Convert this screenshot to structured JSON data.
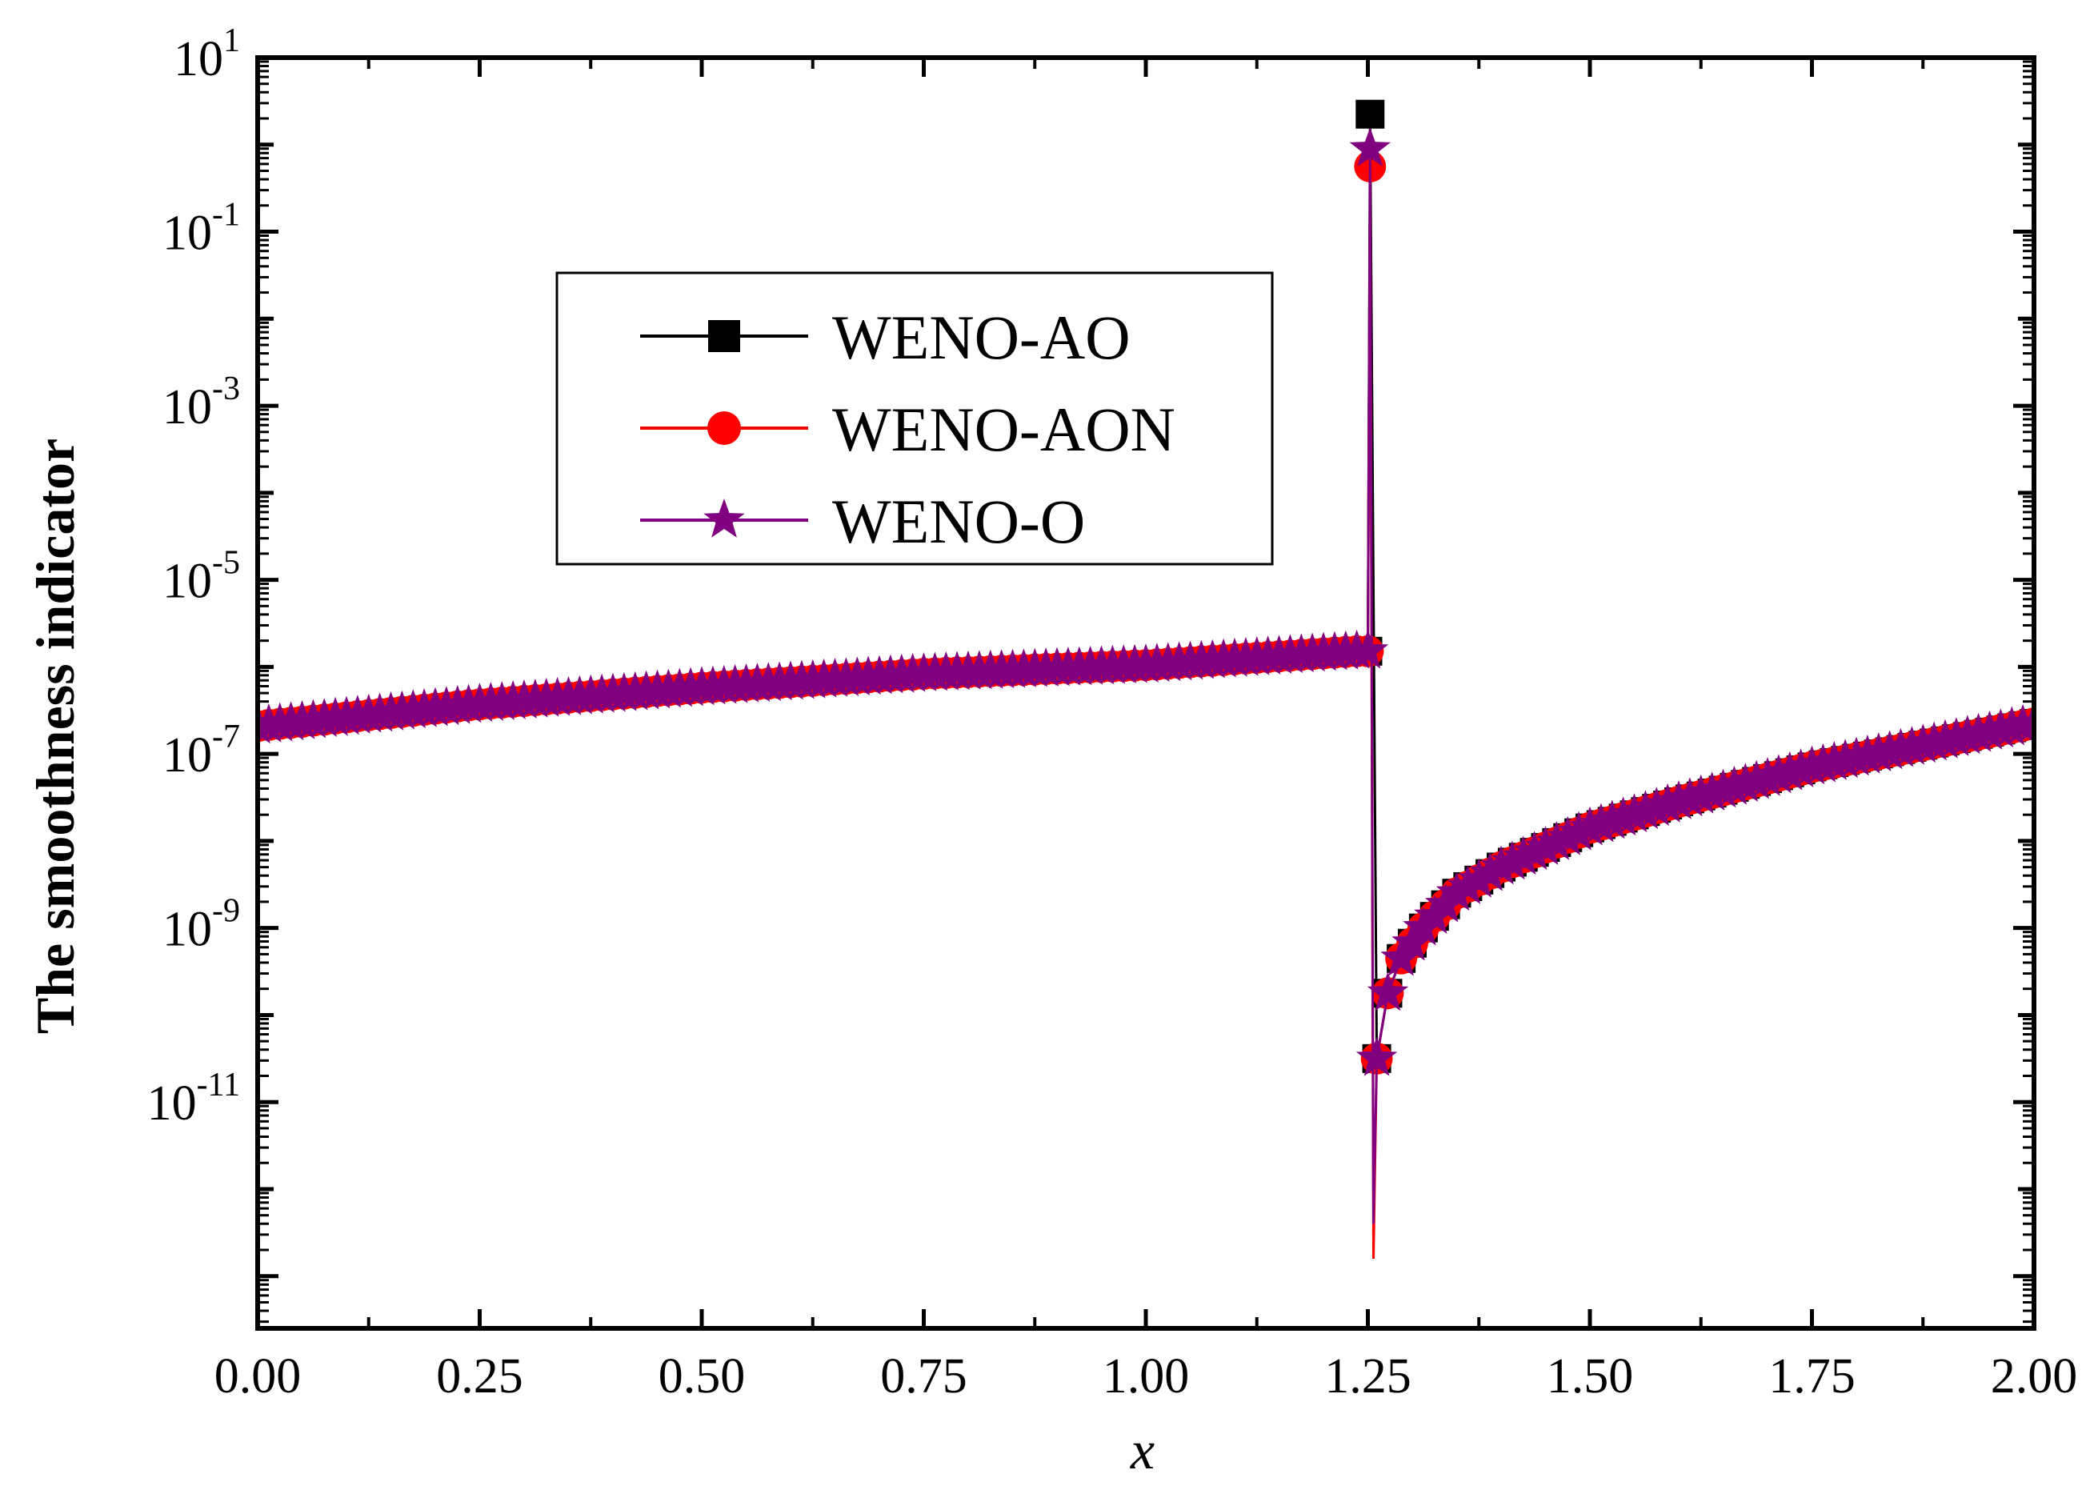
{
  "chart_data": {
    "type": "line",
    "title": "",
    "xlabel": "x",
    "ylabel": "The smoothness indicator",
    "x_scale": "linear",
    "y_scale": "log",
    "xlim": [
      0,
      2
    ],
    "ylim_exponent": [
      -13.6,
      1
    ],
    "x_ticks": [
      "0.00",
      "0.25",
      "0.50",
      "0.75",
      "1.00",
      "1.25",
      "1.50",
      "1.75",
      "2.00"
    ],
    "y_ticks": [
      {
        "base": "10",
        "exp": "1",
        "power": 1
      },
      {
        "base": "10",
        "exp": "-1",
        "power": -1
      },
      {
        "base": "10",
        "exp": "-3",
        "power": -3
      },
      {
        "base": "10",
        "exp": "-5",
        "power": -5
      },
      {
        "base": "10",
        "exp": "-7",
        "power": -7
      },
      {
        "base": "10",
        "exp": "-9",
        "power": -9
      },
      {
        "base": "10",
        "exp": "-11",
        "power": -11
      }
    ],
    "legend_position": "upper-left",
    "series": [
      {
        "name": "WENO-AO",
        "color": "#000000",
        "marker": "square",
        "x": [
          0.0,
          0.25,
          0.5,
          0.75,
          1.0,
          1.2375,
          1.25,
          1.2525,
          1.26,
          1.2725,
          1.2875,
          1.3125,
          1.35,
          1.4,
          1.5,
          1.6,
          1.75,
          2.0
        ],
        "log10_y": [
          -6.68,
          -6.43,
          -6.24,
          -6.08,
          -5.98,
          -5.82,
          -5.82,
          0.35,
          -10.5,
          -9.75,
          -9.35,
          -9.0,
          -8.6,
          -8.3,
          -7.85,
          -7.55,
          -7.15,
          -6.65
        ]
      },
      {
        "name": "WENO-AON",
        "color": "#ff0000",
        "marker": "circle",
        "x": [
          0.0,
          0.25,
          0.5,
          0.75,
          1.0,
          1.2375,
          1.25,
          1.2525,
          1.2563,
          1.26,
          1.2725,
          1.2875,
          1.3125,
          1.35,
          1.4,
          1.5,
          1.6,
          1.75,
          2.0
        ],
        "log10_y": [
          -6.68,
          -6.43,
          -6.24,
          -6.08,
          -5.98,
          -5.82,
          -5.82,
          -0.25,
          -12.8,
          -10.5,
          -9.75,
          -9.35,
          -9.0,
          -8.6,
          -8.3,
          -7.85,
          -7.55,
          -7.15,
          -6.65
        ]
      },
      {
        "name": "WENO-O",
        "color": "#800080",
        "marker": "star",
        "x": [
          0.0,
          0.25,
          0.5,
          0.75,
          1.0,
          1.2375,
          1.25,
          1.2525,
          1.2563,
          1.26,
          1.2725,
          1.2875,
          1.3125,
          1.35,
          1.4,
          1.5,
          1.6,
          1.75,
          2.0
        ],
        "log10_y": [
          -6.68,
          -6.43,
          -6.24,
          -6.08,
          -5.98,
          -5.82,
          -5.82,
          -0.05,
          -12.4,
          -10.5,
          -9.75,
          -9.35,
          -9.0,
          -8.6,
          -8.3,
          -7.85,
          -7.55,
          -7.15,
          -6.65
        ]
      }
    ]
  }
}
